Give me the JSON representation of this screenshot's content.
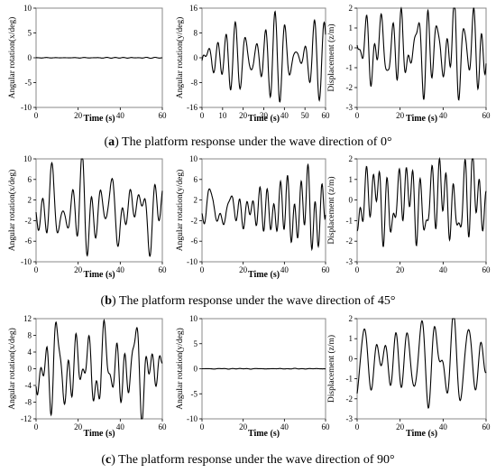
{
  "panels": [
    {
      "label": "a",
      "title": "The platform response under the wave direction of 0°"
    },
    {
      "label": "b",
      "title": "The platform response under the wave direction of 45°"
    },
    {
      "label": "c",
      "title": "The platform response under the wave direction of 90°"
    }
  ],
  "chart_data": [
    {
      "type": "line",
      "panel": "a",
      "xlabel": "Time (s)",
      "ylabel": "Angular rotation(x/deg)",
      "xlim": [
        0,
        60
      ],
      "ylim": [
        -10,
        10
      ],
      "xticks": [
        0,
        20,
        40,
        60
      ],
      "yticks": [
        -10,
        -5,
        0,
        5,
        10
      ],
      "grid": false,
      "signal": "flat",
      "amp": 0.12,
      "seed": 1
    },
    {
      "type": "line",
      "panel": "a",
      "xlabel": "Time (s)",
      "ylabel": "Angular rotation(y/deg)",
      "xlim": [
        0,
        60
      ],
      "ylim": [
        -16,
        16
      ],
      "xticks": [
        0,
        10,
        20,
        30,
        40,
        50,
        60
      ],
      "yticks": [
        -16,
        -8,
        0,
        8,
        16
      ],
      "grid": false,
      "signal": "oscillation",
      "amp": 15,
      "seed": 2
    },
    {
      "type": "line",
      "panel": "a",
      "xlabel": "Time (s)",
      "ylabel": "Displacement (z/m)",
      "xlim": [
        0,
        60
      ],
      "ylim": [
        -3,
        2
      ],
      "xticks": [
        0,
        20,
        40,
        60
      ],
      "yticks": [
        -3,
        -2,
        -1,
        0,
        1,
        2
      ],
      "grid": false,
      "signal": "oscillation",
      "amp": 2.5,
      "seed": 3
    },
    {
      "type": "line",
      "panel": "b",
      "xlabel": "Time (s)",
      "ylabel": "Angular rotation(x/deg)",
      "xlim": [
        0,
        60
      ],
      "ylim": [
        -10,
        10
      ],
      "xticks": [
        0,
        20,
        40,
        60
      ],
      "yticks": [
        -10,
        -6,
        -2,
        2,
        6,
        10
      ],
      "grid": false,
      "signal": "oscillation",
      "amp": 9,
      "seed": 4
    },
    {
      "type": "line",
      "panel": "b",
      "xlabel": "Time (s)",
      "ylabel": "Angular rotation(y/deg)",
      "xlim": [
        0,
        60
      ],
      "ylim": [
        -10,
        10
      ],
      "xticks": [
        0,
        20,
        40,
        60
      ],
      "yticks": [
        -10,
        -6,
        -2,
        2,
        6,
        10
      ],
      "grid": false,
      "signal": "oscillation",
      "amp": 8.5,
      "seed": 5
    },
    {
      "type": "line",
      "panel": "b",
      "xlabel": "",
      "ylabel": "Displacement (z/m)",
      "xlim": [
        0,
        60
      ],
      "ylim": [
        -3,
        2
      ],
      "xticks": [
        0,
        20,
        40,
        60
      ],
      "yticks": [
        -3,
        -2,
        -1,
        0,
        1,
        2
      ],
      "grid": false,
      "signal": "oscillation",
      "amp": 2.4,
      "seed": 6
    },
    {
      "type": "line",
      "panel": "c",
      "xlabel": "Time (s)",
      "ylabel": "Angular rotation(x/deg)",
      "xlim": [
        0,
        60
      ],
      "ylim": [
        -12,
        12
      ],
      "xticks": [
        0,
        20,
        40,
        60
      ],
      "yticks": [
        -12,
        -8,
        -4,
        0,
        4,
        8,
        12
      ],
      "grid": false,
      "signal": "oscillation",
      "amp": 12,
      "seed": 7
    },
    {
      "type": "line",
      "panel": "c",
      "xlabel": "Time (s)",
      "ylabel": "Angular rotation(y/deg)",
      "xlim": [
        0,
        60
      ],
      "ylim": [
        -10,
        10
      ],
      "xticks": [
        0,
        20,
        40,
        60
      ],
      "yticks": [
        -10,
        -5,
        0,
        5,
        10
      ],
      "grid": false,
      "signal": "flat",
      "amp": 0.12,
      "seed": 8
    },
    {
      "type": "line",
      "panel": "c",
      "xlabel": "Time (s)",
      "ylabel": "Displacement (z/m)",
      "xlim": [
        0,
        60
      ],
      "ylim": [
        -3,
        2
      ],
      "xticks": [
        0,
        20,
        40,
        60
      ],
      "yticks": [
        -3,
        -2,
        -1,
        0,
        1,
        2
      ],
      "grid": false,
      "signal": "oscillation",
      "amp": 2.4,
      "seed": 9
    }
  ]
}
